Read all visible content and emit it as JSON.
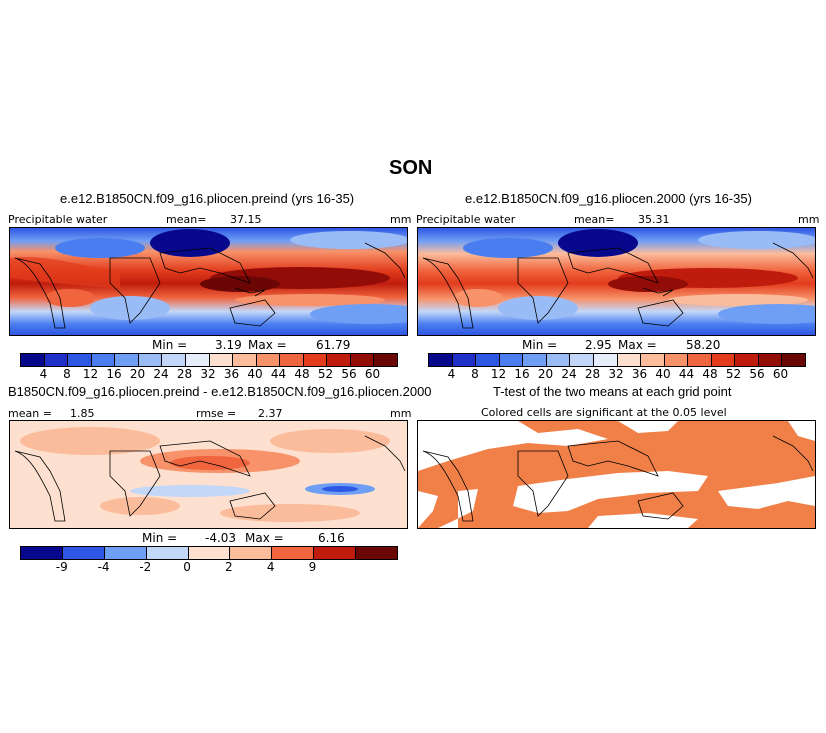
{
  "page": {
    "title": "SON"
  },
  "panels": [
    {
      "title": "e.e12.B1850CN.f09_g16.pliocen.preind (yrs 16-35)",
      "var_label": "Precipitable water",
      "stat_label": "mean=",
      "stat_value": "37.15",
      "units": "mm",
      "min_label": "Min =",
      "min_value": "3.19",
      "max_label": "Max =",
      "max_value": "61.79"
    },
    {
      "title": "e.e12.B1850CN.f09_g16.pliocen.2000 (yrs 16-35)",
      "var_label": "Precipitable water",
      "stat_label": "mean=",
      "stat_value": "35.31",
      "units": "mm",
      "min_label": "Min =",
      "min_value": "2.95",
      "max_label": "Max =",
      "max_value": "58.20"
    },
    {
      "title": "B1850CN.f09_g16.pliocen.preind - e.e12.B1850CN.f09_g16.pliocen.2000",
      "mean_label": "mean =",
      "mean_value": "1.85",
      "rmse_label": "rmse =",
      "rmse_value": "2.37",
      "units": "mm",
      "min_label": "Min =",
      "min_value": "-4.03",
      "max_label": "Max =",
      "max_value": "6.16"
    },
    {
      "title": "T-test of the two means at each grid point",
      "subtitle": "Colored cells are significant at the 0.05 level"
    }
  ],
  "colorbar_abs": {
    "ticks": [
      "4",
      "8",
      "12",
      "16",
      "20",
      "24",
      "28",
      "32",
      "36",
      "40",
      "44",
      "48",
      "52",
      "56",
      "60"
    ],
    "colors": [
      "#08088c",
      "#1f2fc7",
      "#2e57e3",
      "#4a7ef0",
      "#6f9ef5",
      "#99bcf7",
      "#c3d7f8",
      "#e6eefb",
      "#fde0cf",
      "#fbbc9c",
      "#f7926a",
      "#f0643e",
      "#e23c1d",
      "#bf1c0d",
      "#920d08",
      "#6a0604"
    ]
  },
  "colorbar_diff": {
    "ticks": [
      "-9",
      "-4",
      "-2",
      "0",
      "2",
      "4",
      "9"
    ],
    "colors": [
      "#08088c",
      "#2e57e3",
      "#6f9ef5",
      "#c3d7f8",
      "#fde0cf",
      "#fbbc9c",
      "#f0643e",
      "#bf1c0d",
      "#6a0604"
    ]
  },
  "colors": {
    "significant": "#f08048",
    "map_border": "#000000"
  }
}
